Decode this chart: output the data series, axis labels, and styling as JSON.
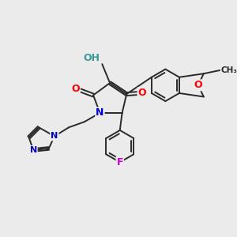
{
  "background_color": "#ebebeb",
  "bond_color": "#2a2a2a",
  "atom_colors": {
    "O": "#ff0000",
    "N": "#0000cc",
    "F": "#cc00cc",
    "H_teal": "#3a9a9a",
    "C": "#2a2a2a"
  },
  "figsize": [
    3.0,
    3.0
  ],
  "dpi": 100
}
